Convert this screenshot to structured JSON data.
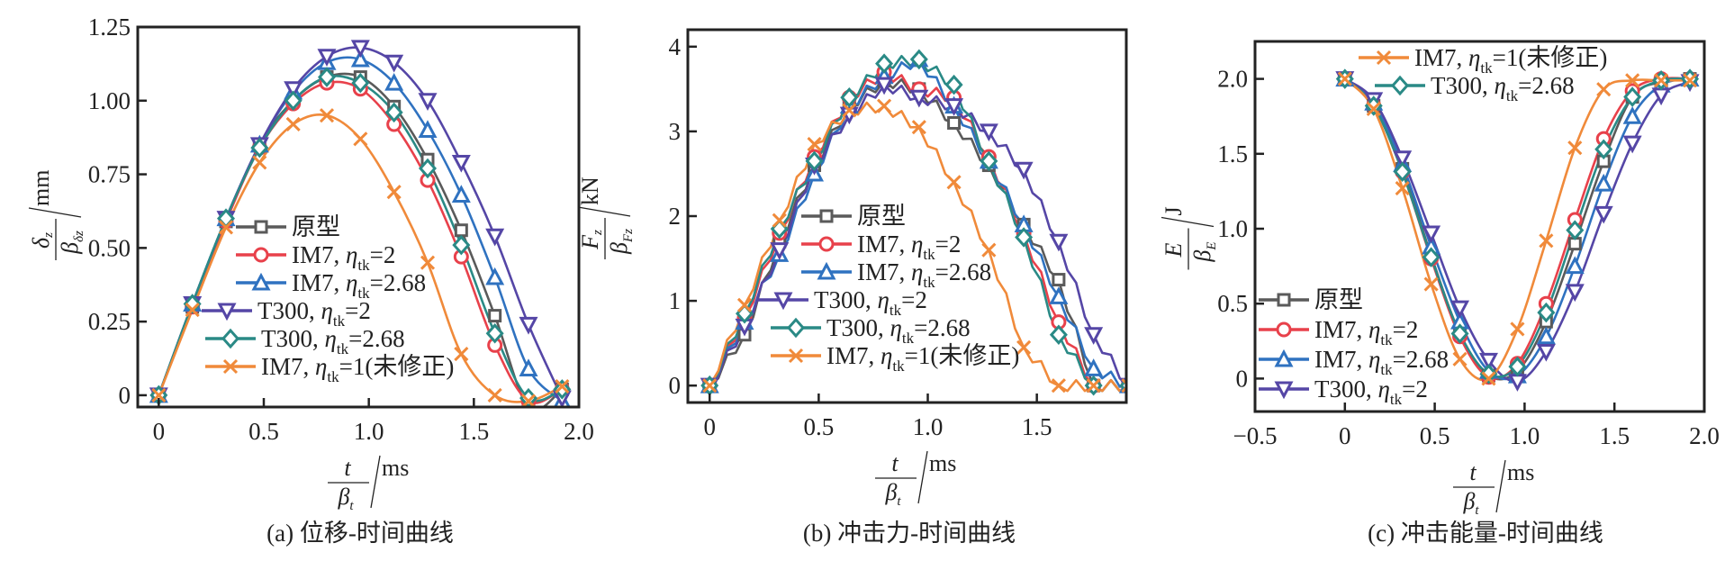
{
  "figure": {
    "series_styles": [
      {
        "key": "prototype",
        "color": "#5a5a5a",
        "marker": "square"
      },
      {
        "key": "im7_2",
        "color": "#e8414b",
        "marker": "circle"
      },
      {
        "key": "im7_268",
        "color": "#2f72c0",
        "marker": "triangle-up"
      },
      {
        "key": "t300_2",
        "color": "#5546a6",
        "marker": "triangle-down"
      },
      {
        "key": "t300_268",
        "color": "#2a8a86",
        "marker": "diamond"
      },
      {
        "key": "im7_1",
        "color": "#f08a3a",
        "marker": "x"
      }
    ],
    "legend_labels": {
      "prototype": {
        "main": "原型",
        "eta": "",
        "sub": "",
        "rest": ""
      },
      "im7_2": {
        "main": "IM7, ",
        "eta": "η",
        "sub": "tk",
        "rest": "=2"
      },
      "im7_268": {
        "main": "IM7, ",
        "eta": "η",
        "sub": "tk",
        "rest": "=2.68"
      },
      "t300_2": {
        "main": "T300, ",
        "eta": "η",
        "sub": "tk",
        "rest": "=2"
      },
      "t300_268": {
        "main": "T300, ",
        "eta": "η",
        "sub": "tk",
        "rest": "=2.68"
      },
      "im7_1": {
        "main": "IM7, ",
        "eta": "η",
        "sub": "tk",
        "rest": "=1(未修正)"
      }
    }
  },
  "chart_data": [
    {
      "id": "a",
      "type": "line",
      "title": "",
      "caption": "(a) 位移-时间曲线",
      "xlabel": {
        "num": "t",
        "den": "β",
        "den_sub": "t",
        "unit": "ms"
      },
      "ylabel": {
        "num": "δ",
        "num_sub": "z",
        "den": "β",
        "den_sub": "δz",
        "unit": "mm"
      },
      "xlim": [
        -0.1,
        2.0
      ],
      "ylim": [
        -0.04,
        1.25
      ],
      "xticks": [
        0,
        0.5,
        1.0,
        1.5,
        2.0
      ],
      "xtick_labels": [
        "0",
        "0.5",
        "1.0",
        "1.5",
        "2.0"
      ],
      "yticks": [
        0,
        0.25,
        0.5,
        0.75,
        1.0,
        1.25
      ],
      "ytick_labels": [
        "0",
        "0.25",
        "0.50",
        "0.75",
        "1.00",
        "1.25"
      ],
      "grid": false,
      "legend": {
        "placement": "lower-center",
        "order": [
          "prototype",
          "im7_2",
          "im7_268",
          "t300_2",
          "t300_268",
          "im7_1"
        ]
      },
      "marker_x": [
        0,
        0.16,
        0.32,
        0.48,
        0.64,
        0.8,
        0.96,
        1.12,
        1.28,
        1.44,
        1.6,
        1.76,
        1.92
      ],
      "series": [
        {
          "key": "prototype",
          "name": "原型",
          "values": [
            0,
            0.3,
            0.59,
            0.85,
            1.0,
            1.08,
            1.08,
            0.98,
            0.8,
            0.56,
            0.27,
            -0.04,
            0.02
          ]
        },
        {
          "key": "im7_2",
          "name": "IM7, ηtk=2",
          "values": [
            0,
            0.3,
            0.59,
            0.84,
            0.99,
            1.06,
            1.04,
            0.92,
            0.73,
            0.47,
            0.17,
            -0.02,
            0.02
          ]
        },
        {
          "key": "im7_268",
          "name": "IM7, ηtk=2.68",
          "values": [
            0,
            0.31,
            0.6,
            0.85,
            1.03,
            1.13,
            1.14,
            1.06,
            0.9,
            0.68,
            0.4,
            0.09,
            -0.02
          ]
        },
        {
          "key": "t300_2",
          "name": "T300, ηtk=2",
          "values": [
            0,
            0.31,
            0.6,
            0.85,
            1.04,
            1.15,
            1.18,
            1.13,
            1.0,
            0.79,
            0.54,
            0.24,
            -0.01
          ]
        },
        {
          "key": "t300_268",
          "name": "T300, ηtk=2.68",
          "values": [
            0,
            0.31,
            0.6,
            0.84,
            1.0,
            1.08,
            1.06,
            0.96,
            0.77,
            0.51,
            0.21,
            -0.01,
            0.02
          ]
        },
        {
          "key": "im7_1",
          "name": "IM7, ηtk=1(未修正)",
          "values": [
            0,
            0.29,
            0.57,
            0.79,
            0.92,
            0.95,
            0.87,
            0.69,
            0.45,
            0.14,
            0.0,
            -0.02,
            0.03
          ]
        }
      ]
    },
    {
      "id": "b",
      "type": "line",
      "title": "",
      "caption": "(b) 冲击力-时间曲线",
      "xlabel": {
        "num": "t",
        "den": "β",
        "den_sub": "t",
        "unit": "ms"
      },
      "ylabel": {
        "num": "F",
        "num_sub": "z",
        "den": "β",
        "den_sub": "Fz",
        "unit": "kN"
      },
      "xlim": [
        -0.1,
        1.91
      ],
      "ylim": [
        -0.2,
        4.2
      ],
      "xticks": [
        0,
        0.5,
        1.0,
        1.5
      ],
      "xtick_labels": [
        "0",
        "0.5",
        "1.0",
        "1.5"
      ],
      "yticks": [
        0,
        1,
        2,
        3,
        4
      ],
      "ytick_labels": [
        "0",
        "1",
        "2",
        "3",
        "4"
      ],
      "grid": false,
      "legend": {
        "placement": "lower-center",
        "order": [
          "prototype",
          "im7_2",
          "im7_268",
          "t300_2",
          "t300_268",
          "im7_1"
        ]
      },
      "marker_x": [
        0,
        0.16,
        0.32,
        0.48,
        0.64,
        0.8,
        0.96,
        1.12,
        1.28,
        1.44,
        1.6,
        1.76,
        1.92
      ],
      "series": [
        {
          "key": "prototype",
          "name": "原型",
          "values": [
            0,
            0.6,
            1.7,
            2.6,
            3.3,
            3.6,
            3.5,
            3.1,
            2.6,
            1.9,
            1.25,
            0.0,
            0.0
          ]
        },
        {
          "key": "im7_2",
          "name": "IM7, ηtk=2",
          "values": [
            0,
            0.8,
            1.8,
            2.7,
            3.4,
            3.7,
            3.5,
            3.4,
            2.7,
            1.8,
            0.75,
            0.0,
            0.0
          ]
        },
        {
          "key": "im7_268",
          "name": "IM7, ηtk=2.68",
          "values": [
            0,
            0.75,
            1.55,
            2.5,
            3.3,
            3.65,
            3.85,
            3.3,
            2.65,
            1.9,
            1.05,
            0.2,
            0.0
          ]
        },
        {
          "key": "t300_2",
          "name": "T300, ηtk=2",
          "values": [
            0,
            0.7,
            1.6,
            2.6,
            3.2,
            3.55,
            3.4,
            3.3,
            3.0,
            2.55,
            1.7,
            0.6,
            0.0
          ]
        },
        {
          "key": "t300_268",
          "name": "T300, ηtk=2.68",
          "values": [
            0,
            0.85,
            1.85,
            2.65,
            3.4,
            3.8,
            3.85,
            3.55,
            2.65,
            1.75,
            0.6,
            0.0,
            0.0
          ]
        },
        {
          "key": "im7_1",
          "name": "IM7, ηtk=1(未修正)",
          "values": [
            0,
            0.95,
            1.95,
            2.85,
            3.25,
            3.3,
            3.05,
            2.4,
            1.6,
            0.45,
            0.0,
            0.0,
            0.0
          ]
        }
      ]
    },
    {
      "id": "c",
      "type": "line",
      "title": "",
      "caption": "(c) 冲击能量-时间曲线",
      "xlabel": {
        "num": "t",
        "den": "β",
        "den_sub": "t",
        "unit": "ms"
      },
      "ylabel": {
        "num": "E",
        "num_sub": "",
        "den": "β",
        "den_sub": "E",
        "unit": "J"
      },
      "xlim": [
        -0.5,
        2.0
      ],
      "ylim": [
        -0.22,
        2.25
      ],
      "xticks": [
        -0.5,
        0,
        0.5,
        1.0,
        1.5,
        2.0
      ],
      "xtick_labels": [
        "−0.5",
        "0",
        "0.5",
        "1.0",
        "1.5",
        "2.0"
      ],
      "yticks": [
        0,
        0.5,
        1.0,
        1.5,
        2.0
      ],
      "ytick_labels": [
        "0",
        "0.5",
        "1.0",
        "1.5",
        "2.0"
      ],
      "grid": false,
      "legend": {
        "placement": "split: top-center (IM7 ηtk=1, T300 ηtk=2.68) and bottom-left (原型, IM7 ηtk=2, IM7 ηtk=2.68, T300 ηtk=2)",
        "order_top": [
          "im7_1",
          "t300_268"
        ],
        "order_bottom": [
          "prototype",
          "im7_2",
          "im7_268",
          "t300_2"
        ]
      },
      "marker_x": [
        0,
        0.16,
        0.32,
        0.48,
        0.64,
        0.8,
        0.96,
        1.12,
        1.28,
        1.44,
        1.6,
        1.76,
        1.92
      ],
      "series": [
        {
          "key": "prototype",
          "name": "原型",
          "values": [
            2.0,
            1.82,
            1.4,
            0.82,
            0.3,
            0.02,
            0.05,
            0.38,
            0.9,
            1.45,
            1.88,
            1.98,
            2.0
          ]
        },
        {
          "key": "im7_2",
          "name": "IM7, ηtk=2",
          "values": [
            2.0,
            1.82,
            1.38,
            0.8,
            0.28,
            0.01,
            0.1,
            0.5,
            1.06,
            1.6,
            1.92,
            2.0,
            2.0
          ]
        },
        {
          "key": "im7_268",
          "name": "IM7, ηtk=2.68",
          "values": [
            2.0,
            1.84,
            1.43,
            0.88,
            0.38,
            0.05,
            0.02,
            0.28,
            0.75,
            1.3,
            1.75,
            1.96,
            2.0
          ]
        },
        {
          "key": "t300_2",
          "name": "T300, ηtk=2",
          "values": [
            2.0,
            1.86,
            1.47,
            0.97,
            0.47,
            0.12,
            -0.02,
            0.18,
            0.58,
            1.1,
            1.57,
            1.89,
            1.98
          ]
        },
        {
          "key": "t300_268",
          "name": "T300, ηtk=2.68",
          "values": [
            2.0,
            1.82,
            1.38,
            0.81,
            0.3,
            0.03,
            0.08,
            0.44,
            0.99,
            1.53,
            1.88,
            1.99,
            2.0
          ]
        },
        {
          "key": "im7_1",
          "name": "IM7, ηtk=1(未修正)",
          "values": [
            2.0,
            1.8,
            1.27,
            0.63,
            0.13,
            0.0,
            0.33,
            0.92,
            1.54,
            1.93,
            1.99,
            1.99,
            1.99
          ]
        }
      ]
    }
  ]
}
